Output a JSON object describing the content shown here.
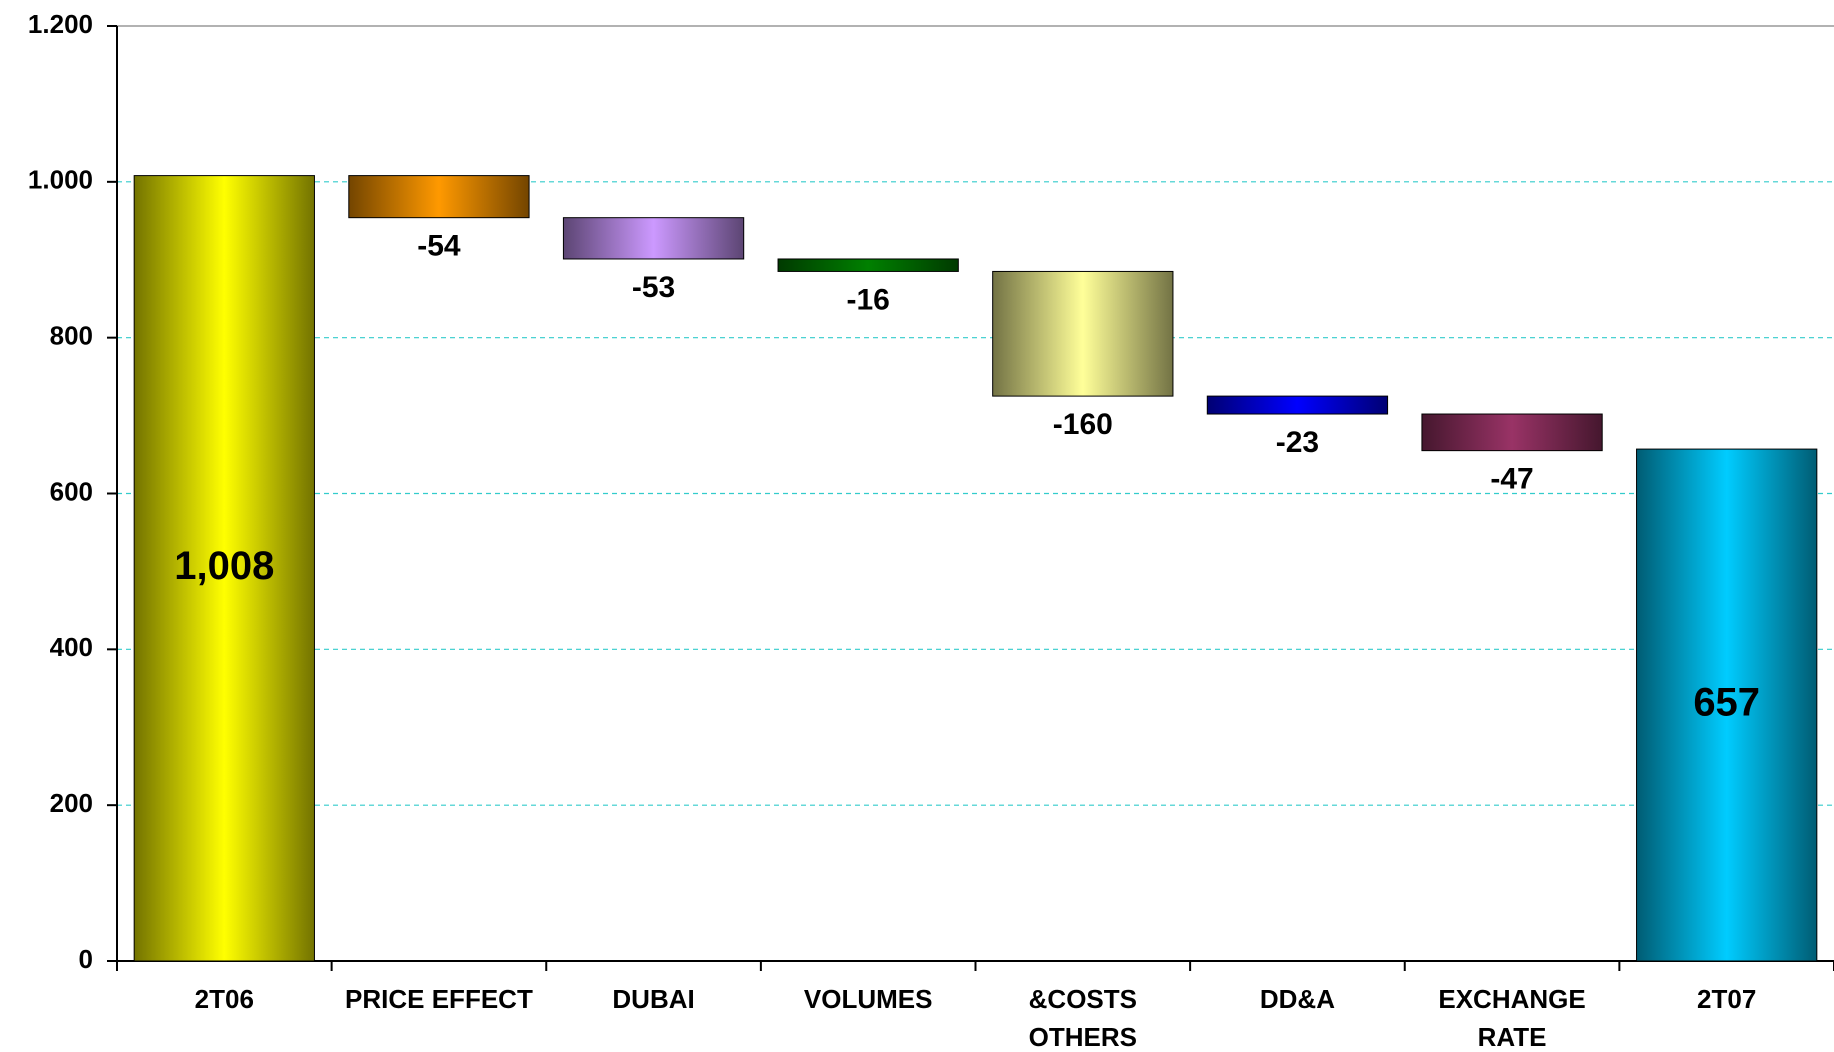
{
  "chart_data": {
    "type": "waterfall",
    "categories": [
      "2T06",
      "PRICE EFFECT",
      "DUBAI",
      "VOLUMES",
      "&COSTS\nOTHERS",
      "DD&A",
      "EXCHANGE\nRATE",
      "2T07"
    ],
    "values": [
      1008,
      -54,
      -53,
      -16,
      -160,
      -23,
      -47,
      657
    ],
    "value_labels": [
      "1,008",
      "-54",
      "-53",
      "-16",
      "-160",
      "-23",
      "-47",
      "657"
    ],
    "colors": [
      "#ffff00",
      "#ff9900",
      "#cc99ff",
      "#008000",
      "#ffff99",
      "#0000ff",
      "#993366",
      "#00ccff"
    ],
    "ylim": [
      0,
      1200
    ],
    "yticks": [
      0,
      200,
      400,
      600,
      800,
      {
        "value": 1000,
        "label": "1.000"
      },
      {
        "value": 1200,
        "label": "1.200"
      }
    ],
    "grid": true
  }
}
